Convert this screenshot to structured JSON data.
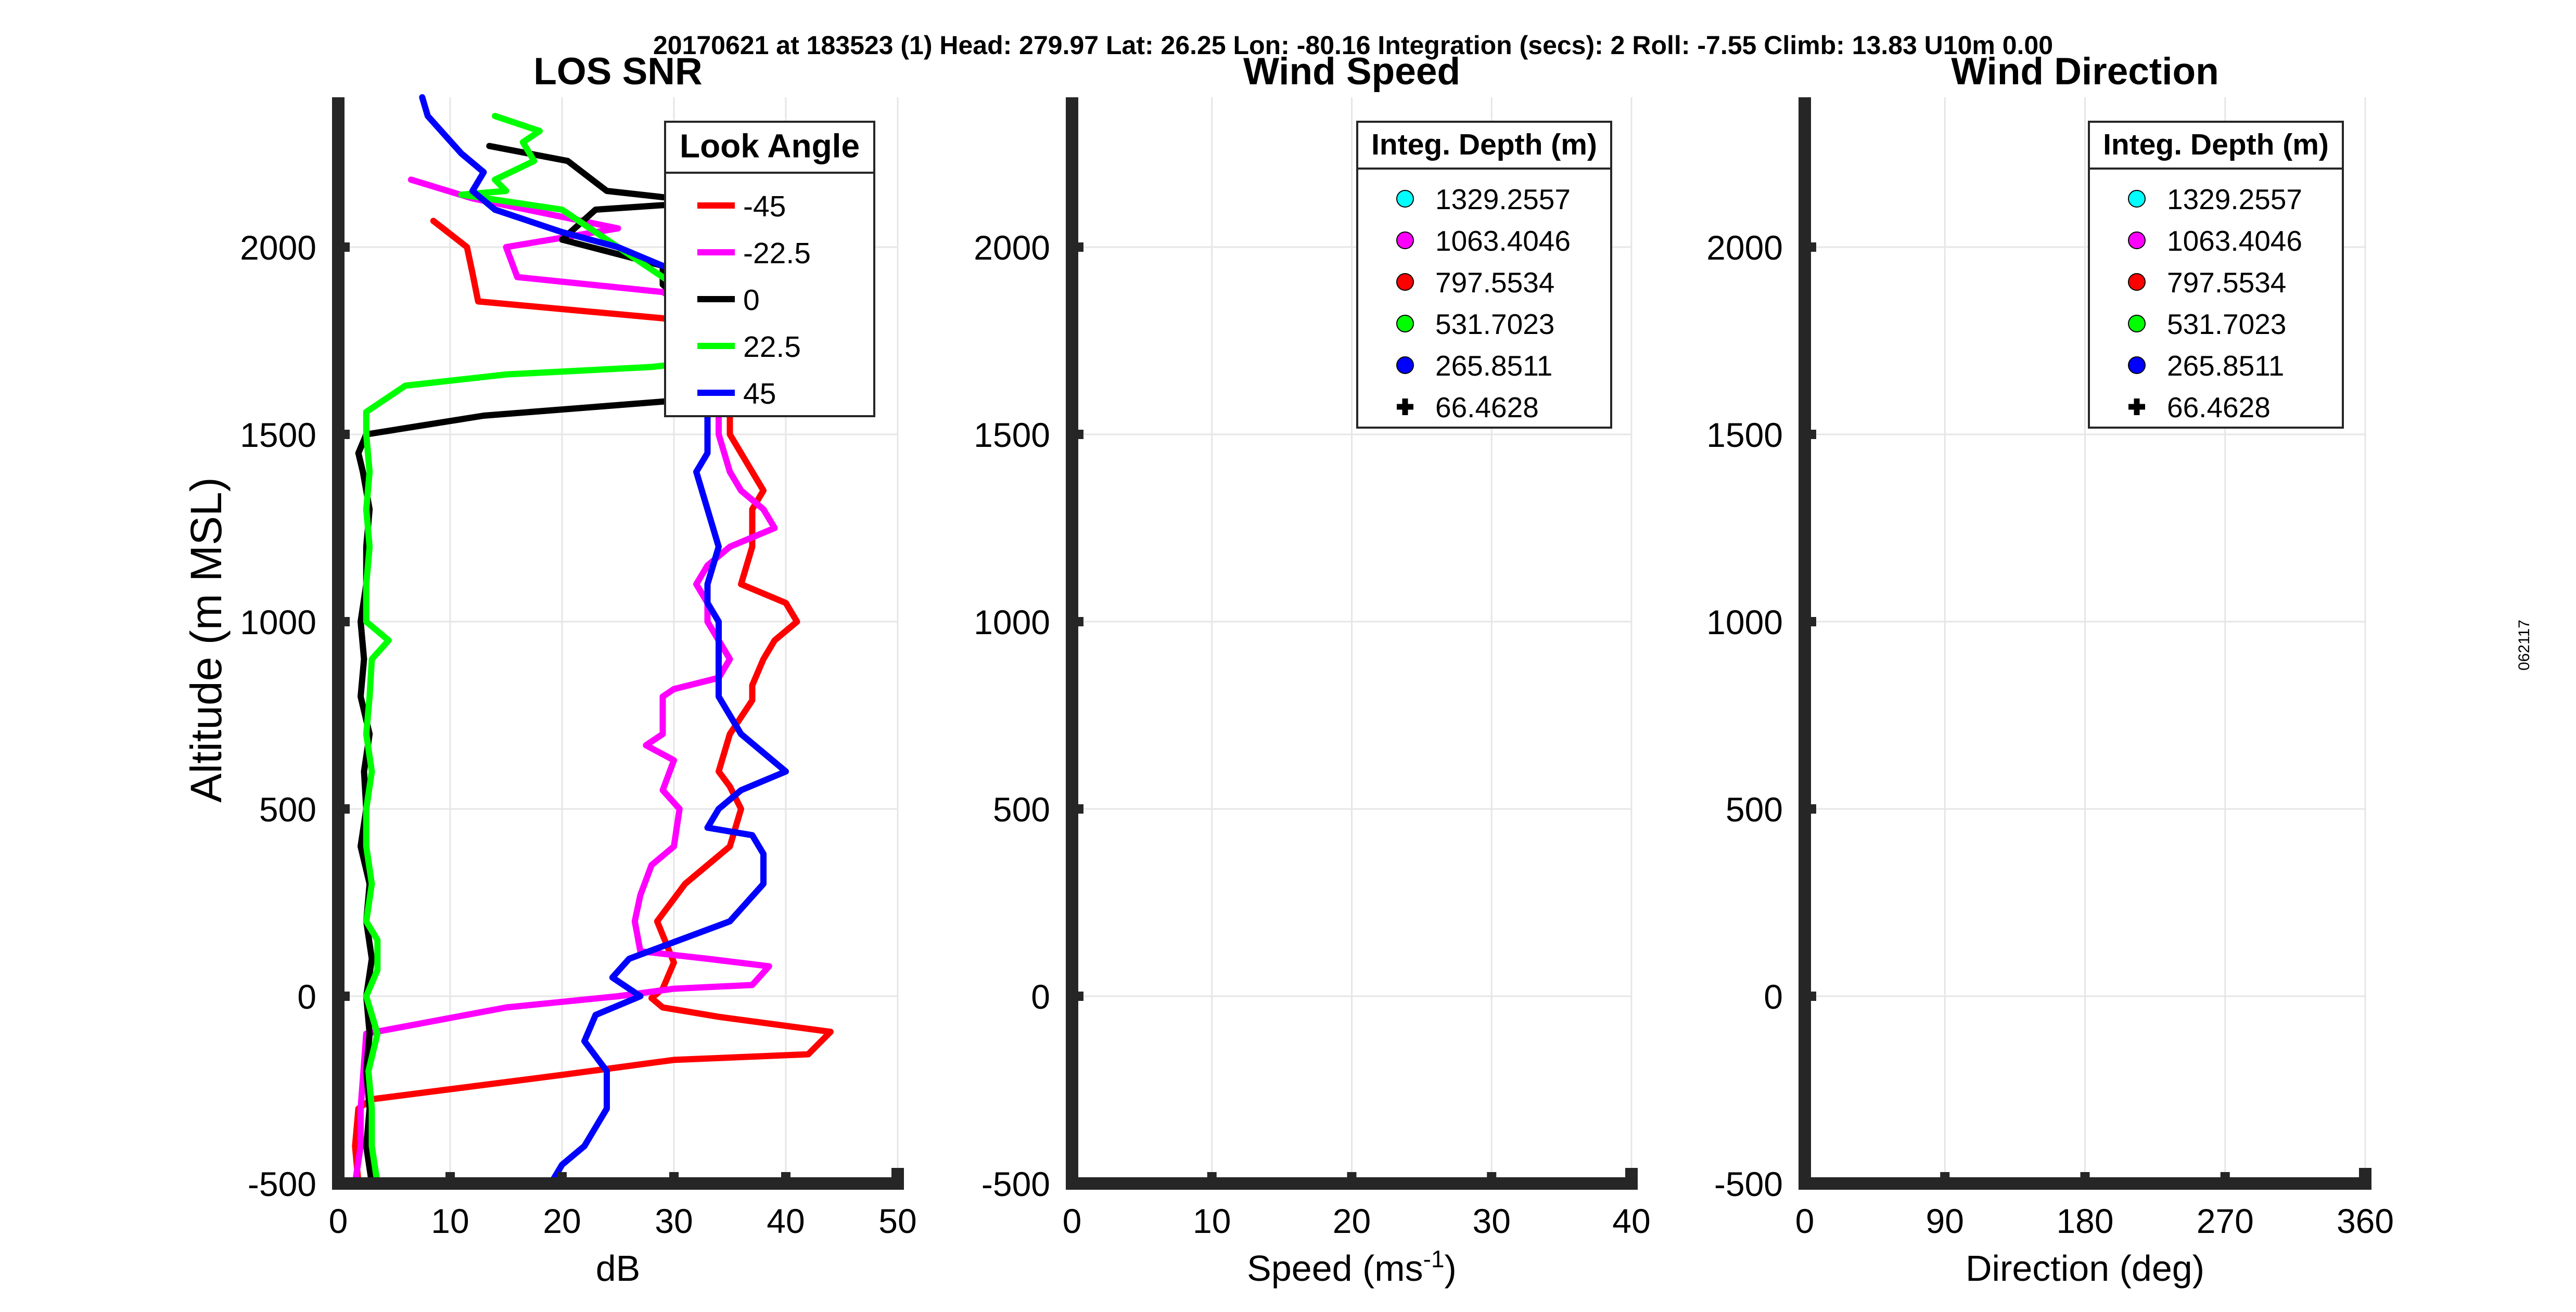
{
  "figure": {
    "header": "20170621 at 183523 (1)  Head: 279.97  Lat: 26.25  Lon: -80.16  Integration (secs): 2  Roll: -7.55  Climb: 13.83  U10m 0.00",
    "side_label": "062117"
  },
  "chart_data": [
    {
      "type": "line",
      "title": "LOS SNR",
      "xlabel": "dB",
      "ylabel": "Altitude (m MSL)",
      "xlim": [
        0,
        50
      ],
      "ylim": [
        -500,
        2400
      ],
      "xticks": [
        "0",
        "10",
        "20",
        "30",
        "40",
        "50"
      ],
      "yticks": [
        "-500",
        "0",
        "500",
        "1000",
        "1500",
        "2000"
      ],
      "grid": true,
      "legend": {
        "title": "Look Angle",
        "position": "top-right"
      },
      "series": [
        {
          "name": "-45",
          "color": "#ff0000",
          "points": [
            [
              1.8,
              -500
            ],
            [
              1.5,
              -400
            ],
            [
              1.8,
              -300
            ],
            [
              3.0,
              -275
            ],
            [
              20,
              -210
            ],
            [
              30,
              -170
            ],
            [
              42,
              -155
            ],
            [
              44,
              -95
            ],
            [
              34,
              -55
            ],
            [
              29,
              -30
            ],
            [
              28,
              -5
            ],
            [
              29,
              20
            ],
            [
              30,
              90
            ],
            [
              28.5,
              200
            ],
            [
              31,
              300
            ],
            [
              35,
              400
            ],
            [
              36,
              500
            ],
            [
              35,
              560
            ],
            [
              34,
              600
            ],
            [
              35,
              700
            ],
            [
              37,
              790
            ],
            [
              37,
              830
            ],
            [
              38,
              900
            ],
            [
              39,
              950
            ],
            [
              41,
              1000
            ],
            [
              40,
              1050
            ],
            [
              36,
              1100
            ],
            [
              37,
              1200
            ],
            [
              37,
              1300
            ],
            [
              38,
              1350
            ],
            [
              37,
              1400
            ],
            [
              35,
              1500
            ],
            [
              35,
              1575
            ],
            [
              35,
              1680
            ],
            [
              35,
              1780
            ],
            [
              29,
              1810
            ],
            [
              12.5,
              1855
            ],
            [
              12.0,
              1930
            ],
            [
              11.5,
              2000
            ],
            [
              8.5,
              2070
            ]
          ]
        },
        {
          "name": "-22.5",
          "color": "#ff00ff",
          "points": [
            [
              1.5,
              -500
            ],
            [
              2.0,
              -400
            ],
            [
              2.0,
              -300
            ],
            [
              2.5,
              -100
            ],
            [
              15,
              -30
            ],
            [
              25,
              0
            ],
            [
              30,
              20
            ],
            [
              37,
              30
            ],
            [
              38.5,
              80
            ],
            [
              33,
              100
            ],
            [
              27,
              120
            ],
            [
              26.5,
              200
            ],
            [
              27,
              270
            ],
            [
              28,
              350
            ],
            [
              30,
              400
            ],
            [
              30.5,
              500
            ],
            [
              29,
              550
            ],
            [
              30,
              630
            ],
            [
              27.5,
              670
            ],
            [
              29,
              700
            ],
            [
              29,
              800
            ],
            [
              30,
              820
            ],
            [
              34,
              850
            ],
            [
              35,
              900
            ],
            [
              34,
              950
            ],
            [
              33,
              1000
            ],
            [
              33,
              1050
            ],
            [
              32,
              1100
            ],
            [
              33,
              1150
            ],
            [
              35,
              1200
            ],
            [
              39,
              1250
            ],
            [
              38,
              1300
            ],
            [
              36,
              1350
            ],
            [
              35,
              1400
            ],
            [
              34,
              1500
            ],
            [
              34,
              1560
            ],
            [
              34,
              1600
            ],
            [
              34,
              1700
            ],
            [
              34,
              1800
            ],
            [
              29,
              1880
            ],
            [
              16,
              1920
            ],
            [
              15,
              2000
            ],
            [
              25,
              2050
            ],
            [
              12,
              2130
            ],
            [
              6.5,
              2180
            ]
          ]
        },
        {
          "name": "0",
          "color": "#000000",
          "points": [
            [
              3.0,
              -500
            ],
            [
              2.5,
              -400
            ],
            [
              2.8,
              -300
            ],
            [
              2.5,
              -200
            ],
            [
              2.8,
              -100
            ],
            [
              2.5,
              0
            ],
            [
              3.0,
              100
            ],
            [
              2.5,
              200
            ],
            [
              2.8,
              300
            ],
            [
              2.0,
              400
            ],
            [
              2.5,
              500
            ],
            [
              2.3,
              600
            ],
            [
              2.8,
              700
            ],
            [
              2.0,
              800
            ],
            [
              2.3,
              900
            ],
            [
              2.0,
              1000
            ],
            [
              2.5,
              1100
            ],
            [
              2.5,
              1200
            ],
            [
              2.8,
              1300
            ],
            [
              2.2,
              1400
            ],
            [
              1.8,
              1450
            ],
            [
              2.5,
              1500
            ],
            [
              13,
              1550
            ],
            [
              30,
              1590
            ],
            [
              36,
              1600
            ],
            [
              35,
              1650
            ],
            [
              35,
              1700
            ],
            [
              33,
              1800
            ],
            [
              29,
              1900
            ],
            [
              29,
              1950
            ],
            [
              20,
              2020
            ],
            [
              23,
              2100
            ],
            [
              33,
              2120
            ],
            [
              24,
              2150
            ],
            [
              20.5,
              2230
            ],
            [
              13.5,
              2270
            ]
          ]
        },
        {
          "name": "22.5",
          "color": "#00ff00",
          "points": [
            [
              3.5,
              -500
            ],
            [
              3.0,
              -400
            ],
            [
              3.0,
              -300
            ],
            [
              2.7,
              -200
            ],
            [
              3.5,
              -100
            ],
            [
              2.5,
              0
            ],
            [
              3.5,
              70
            ],
            [
              3.5,
              150
            ],
            [
              2.5,
              200
            ],
            [
              3.0,
              300
            ],
            [
              2.5,
              400
            ],
            [
              2.5,
              500
            ],
            [
              3.0,
              600
            ],
            [
              2.5,
              700
            ],
            [
              2.8,
              800
            ],
            [
              3.0,
              900
            ],
            [
              4.5,
              950
            ],
            [
              2.5,
              1000
            ],
            [
              2.5,
              1100
            ],
            [
              2.8,
              1200
            ],
            [
              2.5,
              1300
            ],
            [
              2.8,
              1400
            ],
            [
              2.5,
              1500
            ],
            [
              2.5,
              1560
            ],
            [
              6,
              1630
            ],
            [
              15,
              1660
            ],
            [
              28,
              1680
            ],
            [
              34,
              1700
            ],
            [
              32,
              1800
            ],
            [
              30,
              1900
            ],
            [
              25,
              2000
            ],
            [
              20,
              2100
            ],
            [
              11,
              2140
            ],
            [
              15,
              2150
            ],
            [
              14,
              2180
            ],
            [
              17.5,
              2230
            ],
            [
              16.5,
              2280
            ],
            [
              18,
              2310
            ],
            [
              14,
              2350
            ]
          ]
        },
        {
          "name": "45",
          "color": "#0000ff",
          "points": [
            [
              19,
              -500
            ],
            [
              20,
              -450
            ],
            [
              22,
              -400
            ],
            [
              24,
              -300
            ],
            [
              24,
              -200
            ],
            [
              22,
              -120
            ],
            [
              23,
              -50
            ],
            [
              27,
              0
            ],
            [
              24.5,
              50
            ],
            [
              26,
              100
            ],
            [
              35,
              200
            ],
            [
              38,
              300
            ],
            [
              38,
              380
            ],
            [
              37,
              430
            ],
            [
              33,
              450
            ],
            [
              34,
              500
            ],
            [
              36,
              550
            ],
            [
              40,
              600
            ],
            [
              38,
              650
            ],
            [
              36,
              700
            ],
            [
              35,
              750
            ],
            [
              34,
              800
            ],
            [
              34,
              900
            ],
            [
              34,
              1000
            ],
            [
              33,
              1050
            ],
            [
              33,
              1100
            ],
            [
              34,
              1200
            ],
            [
              33,
              1300
            ],
            [
              32,
              1400
            ],
            [
              33,
              1450
            ],
            [
              33,
              1550
            ],
            [
              33,
              1620
            ],
            [
              34,
              1700
            ],
            [
              33,
              1800
            ],
            [
              33,
              1900
            ],
            [
              25,
              2000
            ],
            [
              20,
              2040
            ],
            [
              14,
              2100
            ],
            [
              12,
              2150
            ],
            [
              13,
              2200
            ],
            [
              11,
              2250
            ],
            [
              8,
              2350
            ],
            [
              7.5,
              2400
            ]
          ]
        }
      ]
    },
    {
      "type": "scatter",
      "title": "Wind Speed",
      "xlabel": "Speed (ms",
      "xlabel_sup": "-1",
      "xlabel_end": ")",
      "xlim": [
        0,
        40
      ],
      "ylim": [
        -500,
        2400
      ],
      "xticks": [
        "0",
        "10",
        "20",
        "30",
        "40"
      ],
      "yticks": [
        "-500",
        "0",
        "500",
        "1000",
        "1500",
        "2000"
      ],
      "grid": true,
      "legend": {
        "title": "Integ. Depth (m)",
        "position": "top-right"
      },
      "series": [
        {
          "name": "1329.2557",
          "color": "#00ffff",
          "marker": "circle",
          "points": []
        },
        {
          "name": "1063.4046",
          "color": "#ff00ff",
          "marker": "circle",
          "points": []
        },
        {
          "name": "797.5534",
          "color": "#ff0000",
          "marker": "circle",
          "points": []
        },
        {
          "name": "531.7023",
          "color": "#00ff00",
          "marker": "circle",
          "points": []
        },
        {
          "name": "265.8511",
          "color": "#0000ff",
          "marker": "circle",
          "points": []
        },
        {
          "name": "66.4628",
          "color": "#000000",
          "marker": "plus",
          "points": []
        }
      ]
    },
    {
      "type": "scatter",
      "title": "Wind Direction",
      "xlabel": "Direction (deg)",
      "xlim": [
        0,
        360
      ],
      "ylim": [
        -500,
        2400
      ],
      "xticks": [
        "0",
        "90",
        "180",
        "270",
        "360"
      ],
      "yticks": [
        "-500",
        "0",
        "500",
        "1000",
        "1500",
        "2000"
      ],
      "grid": true,
      "legend": {
        "title": "Integ. Depth (m)",
        "position": "top-right"
      },
      "series": [
        {
          "name": "1329.2557",
          "color": "#00ffff",
          "marker": "circle",
          "points": []
        },
        {
          "name": "1063.4046",
          "color": "#ff00ff",
          "marker": "circle",
          "points": []
        },
        {
          "name": "797.5534",
          "color": "#ff0000",
          "marker": "circle",
          "points": []
        },
        {
          "name": "531.7023",
          "color": "#00ff00",
          "marker": "circle",
          "points": []
        },
        {
          "name": "265.8511",
          "color": "#0000ff",
          "marker": "circle",
          "points": []
        },
        {
          "name": "66.4628",
          "color": "#000000",
          "marker": "plus",
          "points": []
        }
      ]
    }
  ]
}
